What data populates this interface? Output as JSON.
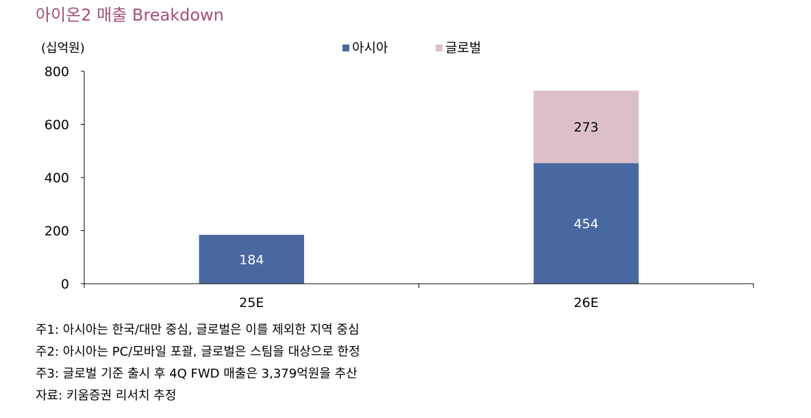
{
  "chart_data": {
    "type": "bar",
    "stacked": true,
    "title": "아이온2 매출 Breakdown",
    "unit_label": "(십억원)",
    "categories": [
      "25E",
      "26E"
    ],
    "series": [
      {
        "name": "아시아",
        "color": "#4a68a0",
        "values": [
          184,
          454
        ]
      },
      {
        "name": "글로벌",
        "color": "#dcbfca",
        "values": [
          null,
          273
        ]
      }
    ],
    "ylim": [
      0,
      800
    ],
    "yticks": [
      0,
      200,
      400,
      600,
      800
    ],
    "legend_position": "top-center",
    "grid": false
  },
  "notes": [
    "주1: 아시아는 한국/대만 중심, 글로벌은 이를 제외한 지역 중심",
    "주2: 아시아는 PC/모바일 포괄, 글로벌은 스팀을 대상으로 한정",
    "주3: 글로벌 기준 출시 후 4Q FWD 매출은 3,379억원을 추산",
    "자료: 키움증권 리서치 추정"
  ]
}
